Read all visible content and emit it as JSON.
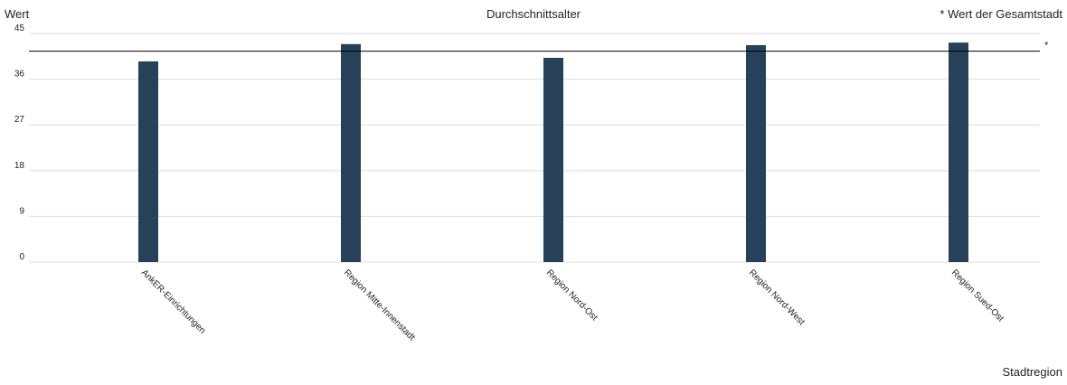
{
  "chart_data": {
    "type": "bar",
    "title": "Durchschnittsalter",
    "y_label": "Wert",
    "x_label": "Stadtregion",
    "legend_note": "* Wert der Gesamtstadt",
    "categories": [
      "AnkER-Einrichtungen",
      "Region Mitte-Innenstadt",
      "Region Nord-Ost",
      "Region Nord-West",
      "Region Sued-Ost"
    ],
    "values": [
      39.5,
      42.9,
      40.2,
      42.7,
      43.2
    ],
    "color": "#27415a",
    "reference_value": 41.5,
    "reference_label": "*",
    "ylim": [
      0,
      45
    ],
    "yticks": [
      0,
      9,
      18,
      27,
      36,
      45
    ],
    "grid": true
  }
}
